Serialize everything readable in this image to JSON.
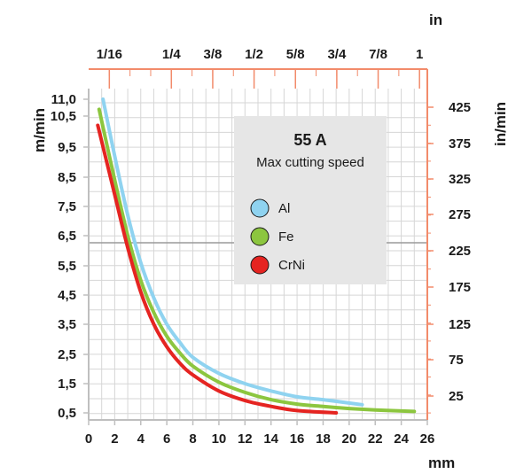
{
  "chart_data": {
    "type": "line",
    "x": {
      "label": "mm",
      "ticks": [
        0,
        2,
        4,
        6,
        8,
        10,
        12,
        14,
        16,
        18,
        20,
        22,
        24,
        26
      ],
      "range": [
        0,
        26
      ]
    },
    "y": {
      "label": "m/min",
      "ticks": [
        "11,0",
        "10,5",
        "9,5",
        "8,5",
        "7,5",
        "6,5",
        "5,5",
        "4,5",
        "3,5",
        "2,5",
        "1,5",
        "0,5"
      ]
    },
    "x_top": {
      "label": "in",
      "ticks": [
        {
          "label": "1/16",
          "mm": 1.5875
        },
        {
          "label": "1/4",
          "mm": 6.35
        },
        {
          "label": "3/8",
          "mm": 9.525
        },
        {
          "label": "1/2",
          "mm": 12.7
        },
        {
          "label": "5/8",
          "mm": 15.875
        },
        {
          "label": "3/4",
          "mm": 19.05
        },
        {
          "label": "7/8",
          "mm": 22.225
        },
        {
          "label": "1",
          "mm": 25.4
        }
      ]
    },
    "y_right": {
      "label": "in/min",
      "ticks": [
        "425",
        "375",
        "325",
        "275",
        "225",
        "175",
        "125",
        "75",
        "25"
      ]
    },
    "legend": {
      "title": "55 A",
      "subtitle": "Max cutting speed",
      "placement": "top-right",
      "entries": [
        "Al",
        "Fe",
        "CrNi"
      ]
    },
    "series": [
      {
        "name": "Al",
        "color": "#8fd3f0",
        "points": [
          [
            1.1,
            11.0
          ],
          [
            2,
            9.2
          ],
          [
            3,
            7.2
          ],
          [
            4,
            5.6
          ],
          [
            5,
            4.4
          ],
          [
            6,
            3.5
          ],
          [
            7,
            2.9
          ],
          [
            8,
            2.4
          ],
          [
            10,
            1.85
          ],
          [
            12,
            1.5
          ],
          [
            14,
            1.25
          ],
          [
            16,
            1.05
          ],
          [
            18,
            0.95
          ],
          [
            21,
            0.78
          ]
        ]
      },
      {
        "name": "Fe",
        "color": "#8cc63f",
        "points": [
          [
            0.8,
            10.7
          ],
          [
            2,
            8.4
          ],
          [
            3,
            6.5
          ],
          [
            4,
            5.0
          ],
          [
            5,
            3.9
          ],
          [
            6,
            3.1
          ],
          [
            7,
            2.55
          ],
          [
            8,
            2.1
          ],
          [
            10,
            1.55
          ],
          [
            12,
            1.2
          ],
          [
            14,
            0.95
          ],
          [
            16,
            0.8
          ],
          [
            18,
            0.72
          ],
          [
            20,
            0.65
          ],
          [
            22,
            0.6
          ],
          [
            25,
            0.55
          ]
        ]
      },
      {
        "name": "CrNi",
        "color": "#e52421",
        "points": [
          [
            0.7,
            10.2
          ],
          [
            2,
            7.9
          ],
          [
            3,
            6.1
          ],
          [
            4,
            4.6
          ],
          [
            5,
            3.5
          ],
          [
            6,
            2.75
          ],
          [
            7,
            2.2
          ],
          [
            8,
            1.8
          ],
          [
            10,
            1.25
          ],
          [
            12,
            0.92
          ],
          [
            14,
            0.72
          ],
          [
            16,
            0.58
          ],
          [
            19,
            0.48
          ]
        ]
      }
    ],
    "grid": true,
    "axis_colors": {
      "metric": "#bfbfbf",
      "imperial": "#f28b6b",
      "grid": "#d6d6d6",
      "grid_strong": "#9a9a9a",
      "legend_bg": "#e6e6e6"
    }
  }
}
